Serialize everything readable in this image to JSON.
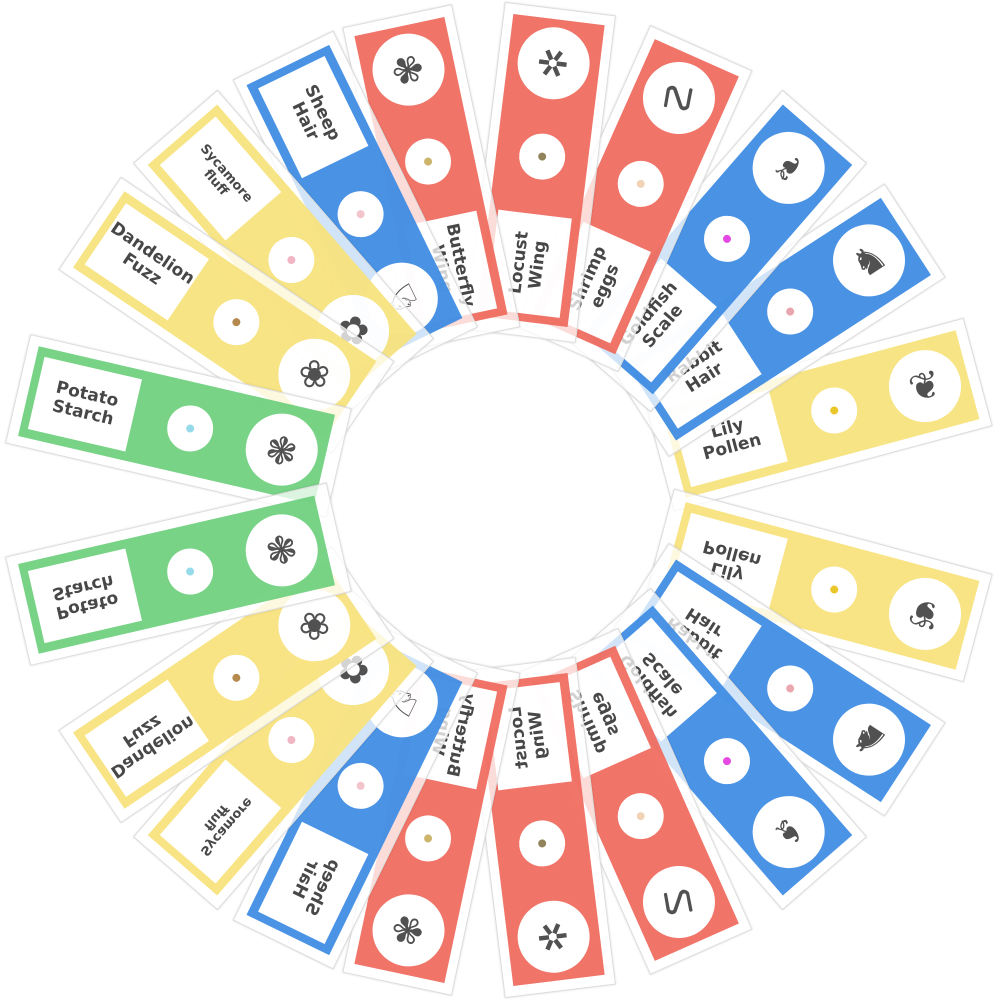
{
  "slides": [
    {
      "label": "Lily Pollen",
      "color": "#f7e27c",
      "angle": 345,
      "label_outer": false,
      "icon": "lily-flower-icon",
      "glyph": "❦",
      "specimen": "#e8c21a"
    },
    {
      "label": "Rabbit Hair",
      "color": "#3d8be3",
      "angle": 327,
      "label_outer": false,
      "icon": "rabbit-icon",
      "glyph": "♞",
      "specimen": "#e9a0a8"
    },
    {
      "label": "Goldfish Scale",
      "color": "#3d8be3",
      "angle": 311,
      "label_outer": false,
      "icon": "goldfish-icon",
      "glyph": "❧",
      "specimen": "#e23be0"
    },
    {
      "label": "Shrimp eggs",
      "color": "#ef6a5d",
      "angle": 294,
      "label_outer": false,
      "icon": "shrimp-icon",
      "glyph": "☡",
      "specimen": "#f0d0b0"
    },
    {
      "label": "Locust Wing",
      "color": "#ef6a5d",
      "angle": 277,
      "label_outer": false,
      "icon": "locust-icon",
      "glyph": "✲",
      "specimen": "#8a7a50"
    },
    {
      "label": "Butterfly Wing",
      "color": "#ef6a5d",
      "angle": 258,
      "label_outer": false,
      "icon": "butterfly-icon",
      "glyph": "✾",
      "specimen": "#c9b060"
    },
    {
      "label": "Sheep Hair",
      "color": "#3d8be3",
      "angle": 244,
      "label_outer": true,
      "icon": "sheep-icon",
      "glyph": "♘",
      "specimen": "#f2c0c8"
    },
    {
      "label": "Sycamore fluff",
      "color": "#f7e27c",
      "angle": 229,
      "label_outer": true,
      "icon": "sycamore-icon",
      "glyph": "✿",
      "specimen": "#f0b0c0"
    },
    {
      "label": "Dandelion Fuzz",
      "color": "#f7e27c",
      "angle": 214,
      "label_outer": true,
      "icon": "dandelion-icon",
      "glyph": "❀",
      "specimen": "#b08040"
    },
    {
      "label": "Potato Starch",
      "color": "#6ed07e",
      "angle": 193,
      "label_outer": true,
      "icon": "potato-icon",
      "glyph": "❃",
      "specimen": "#8fd8e8"
    }
  ]
}
